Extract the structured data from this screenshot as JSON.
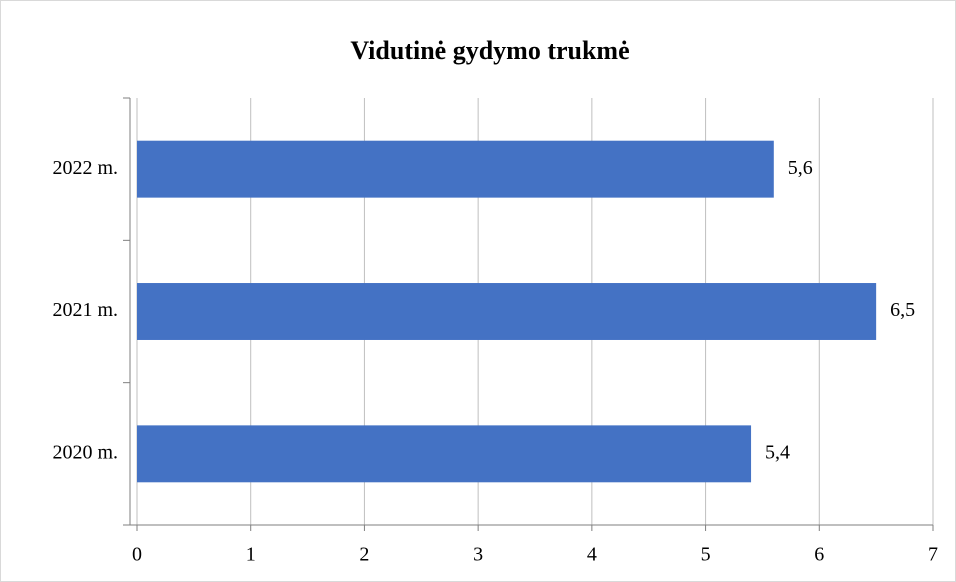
{
  "chart_data": {
    "type": "bar",
    "orientation": "horizontal",
    "title": "Vidutinė gydymo trukmė",
    "categories": [
      "2020 m.",
      "2021 m.",
      "2022 m."
    ],
    "values": [
      5.4,
      6.5,
      5.6
    ],
    "value_labels": [
      "5,4",
      "6,5",
      "5,6"
    ],
    "color": "#4472c4",
    "xlim": [
      0,
      7
    ],
    "xticks": [
      0,
      1,
      2,
      3,
      4,
      5,
      6,
      7
    ],
    "grid": true
  }
}
